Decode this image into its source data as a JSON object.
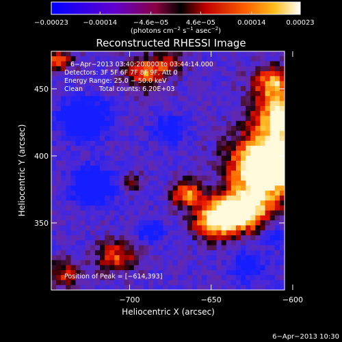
{
  "chart_data": {
    "type": "heatmap",
    "title": "Reconstructed RHESSI Image",
    "xlabel": "Heliocentric X (arcsec)",
    "ylabel": "Heliocentric Y (arcsec)",
    "xlim": [
      -748,
      -605
    ],
    "ylim": [
      300,
      478
    ],
    "x_ticks": [
      -700,
      -650,
      -600
    ],
    "x_tick_labels": [
      "−700",
      "−650",
      "−600"
    ],
    "y_ticks": [
      350,
      400,
      450
    ],
    "y_tick_labels": [
      "350",
      "400",
      "450"
    ],
    "colorbar": {
      "range": [
        -0.00023,
        0.00023
      ],
      "tick_values": [
        -0.00023,
        -0.00014,
        -4.6e-05,
        4.6e-05,
        0.00014,
        0.00023
      ],
      "tick_labels": [
        "−0.00023",
        "−0.00014",
        "−4.6e−05",
        "4.6e−05",
        "0.00014",
        "0.00023"
      ],
      "unit_main": "(photons cm",
      "unit_exp1": "−2",
      "unit_mid": " s",
      "unit_exp2": "−1",
      "unit_mid2": " asec",
      "unit_exp3": "−2",
      "unit_end": ")"
    },
    "annotations": {
      "time_range": "6−Apr−2013 03:40:20.000 to 03:44:14.000",
      "detectors": "Detectors: 3F 5F 6F 7F 8F 9F, Att 0",
      "energy": "Energy Range: 25.0 − 50.0 keV",
      "method": "Clean",
      "counts": "Total counts: 6.20E+03",
      "peak": "Position of Peak = [−614,393]"
    },
    "peak_position": [
      -614,
      393
    ],
    "grid": false,
    "colormap": [
      "#0000ff",
      "#2000ff",
      "#6000e0",
      "#901878",
      "#c02020",
      "#ff0000",
      "#ff6000",
      "#ffb000",
      "#ffe060",
      "#ffffff"
    ]
  },
  "footer": {
    "timestamp": "6−Apr−2013 10:30"
  }
}
